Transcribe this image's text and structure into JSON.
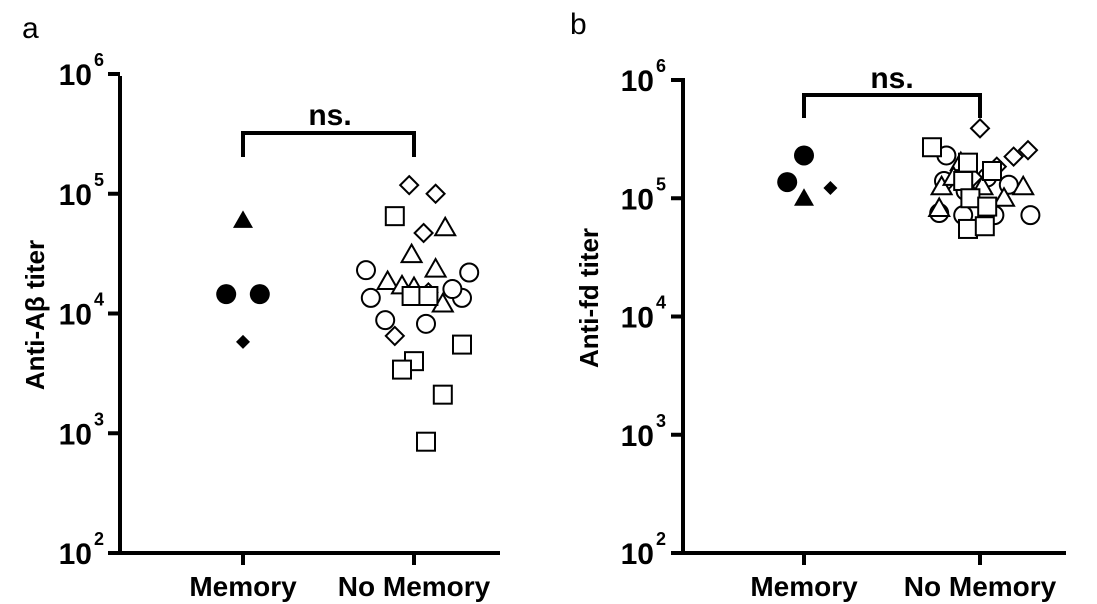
{
  "panels": [
    {
      "letter": "a",
      "ylabel": "Anti-Aβ titer",
      "significance": "ns.",
      "y_ticks": [
        {
          "base": "10",
          "exp": "2",
          "value": 100
        },
        {
          "base": "10",
          "exp": "3",
          "value": 1000
        },
        {
          "base": "10",
          "exp": "4",
          "value": 10000
        },
        {
          "base": "10",
          "exp": "5",
          "value": 100000
        },
        {
          "base": "10",
          "exp": "6",
          "value": 1000000
        }
      ]
    },
    {
      "letter": "b",
      "ylabel": "Anti-fd titer",
      "significance": "ns.",
      "y_ticks": [
        {
          "base": "10",
          "exp": "2",
          "value": 100
        },
        {
          "base": "10",
          "exp": "3",
          "value": 1000
        },
        {
          "base": "10",
          "exp": "4",
          "value": 10000
        },
        {
          "base": "10",
          "exp": "5",
          "value": 100000
        },
        {
          "base": "10",
          "exp": "6",
          "value": 1000000
        }
      ]
    }
  ],
  "chart_data": [
    {
      "type": "scatter",
      "ylabel": "Anti-Aβ titer",
      "yscale": "log",
      "ylim": [
        100,
        1000000
      ],
      "categories": [
        "Memory",
        "No Memory"
      ],
      "annotations": [
        "ns."
      ],
      "grid": false,
      "points": [
        {
          "cat": 0,
          "dx": -0.07,
          "y": 14500,
          "marker": "circle",
          "filled": true
        },
        {
          "cat": 0,
          "dx": 0.07,
          "y": 14500,
          "marker": "circle",
          "filled": true
        },
        {
          "cat": 0,
          "dx": 0.0,
          "y": 60000,
          "marker": "triangle",
          "filled": true
        },
        {
          "cat": 0,
          "dx": 0.0,
          "y": 5800,
          "marker": "diamond",
          "filled": true
        },
        {
          "cat": 1,
          "dx": -0.2,
          "y": 23000,
          "marker": "circle",
          "filled": false
        },
        {
          "cat": 1,
          "dx": -0.18,
          "y": 13500,
          "marker": "circle",
          "filled": false
        },
        {
          "cat": 1,
          "dx": -0.12,
          "y": 8800,
          "marker": "circle",
          "filled": false
        },
        {
          "cat": 1,
          "dx": 0.05,
          "y": 8200,
          "marker": "circle",
          "filled": false
        },
        {
          "cat": 1,
          "dx": 0.2,
          "y": 13500,
          "marker": "circle",
          "filled": false
        },
        {
          "cat": 1,
          "dx": 0.23,
          "y": 22000,
          "marker": "circle",
          "filled": false
        },
        {
          "cat": 1,
          "dx": 0.16,
          "y": 16000,
          "marker": "circle",
          "filled": false
        },
        {
          "cat": 1,
          "dx": -0.11,
          "y": 18500,
          "marker": "triangle",
          "filled": false
        },
        {
          "cat": 1,
          "dx": -0.05,
          "y": 17000,
          "marker": "triangle",
          "filled": false
        },
        {
          "cat": 1,
          "dx": 0.0,
          "y": 16500,
          "marker": "triangle",
          "filled": false
        },
        {
          "cat": 1,
          "dx": -0.01,
          "y": 31000,
          "marker": "triangle",
          "filled": false
        },
        {
          "cat": 1,
          "dx": 0.09,
          "y": 23500,
          "marker": "triangle",
          "filled": false
        },
        {
          "cat": 1,
          "dx": 0.13,
          "y": 52000,
          "marker": "triangle",
          "filled": false
        },
        {
          "cat": 1,
          "dx": 0.12,
          "y": 12000,
          "marker": "triangle",
          "filled": false
        },
        {
          "cat": 1,
          "dx": -0.02,
          "y": 118000,
          "marker": "diamond",
          "filled": false
        },
        {
          "cat": 1,
          "dx": 0.09,
          "y": 100000,
          "marker": "diamond",
          "filled": false
        },
        {
          "cat": 1,
          "dx": 0.04,
          "y": 47000,
          "marker": "diamond",
          "filled": false
        },
        {
          "cat": 1,
          "dx": -0.08,
          "y": 6500,
          "marker": "diamond",
          "filled": false
        },
        {
          "cat": 1,
          "dx": 0.06,
          "y": 15000,
          "marker": "diamond",
          "filled": false
        },
        {
          "cat": 1,
          "dx": -0.08,
          "y": 65000,
          "marker": "square",
          "filled": false
        },
        {
          "cat": 1,
          "dx": -0.01,
          "y": 14000,
          "marker": "square",
          "filled": false
        },
        {
          "cat": 1,
          "dx": 0.06,
          "y": 14000,
          "marker": "square",
          "filled": false
        },
        {
          "cat": 1,
          "dx": 0.0,
          "y": 4000,
          "marker": "square",
          "filled": false
        },
        {
          "cat": 1,
          "dx": -0.05,
          "y": 3400,
          "marker": "square",
          "filled": false
        },
        {
          "cat": 1,
          "dx": 0.2,
          "y": 5500,
          "marker": "square",
          "filled": false
        },
        {
          "cat": 1,
          "dx": 0.12,
          "y": 2100,
          "marker": "square",
          "filled": false
        },
        {
          "cat": 1,
          "dx": 0.05,
          "y": 850,
          "marker": "square",
          "filled": false
        }
      ]
    },
    {
      "type": "scatter",
      "ylabel": "Anti-fd titer",
      "yscale": "log",
      "ylim": [
        100,
        1000000
      ],
      "categories": [
        "Memory",
        "No Memory"
      ],
      "annotations": [
        "ns."
      ],
      "grid": false,
      "points": [
        {
          "cat": 0,
          "dx": -0.07,
          "y": 137000,
          "marker": "circle",
          "filled": true
        },
        {
          "cat": 0,
          "dx": 0.0,
          "y": 230000,
          "marker": "circle",
          "filled": true
        },
        {
          "cat": 0,
          "dx": 0.0,
          "y": 100000,
          "marker": "triangle",
          "filled": true
        },
        {
          "cat": 0,
          "dx": 0.11,
          "y": 122000,
          "marker": "diamond",
          "filled": true
        },
        {
          "cat": 1,
          "dx": -0.14,
          "y": 230000,
          "marker": "circle",
          "filled": false
        },
        {
          "cat": 1,
          "dx": -0.15,
          "y": 140000,
          "marker": "circle",
          "filled": false
        },
        {
          "cat": 1,
          "dx": -0.17,
          "y": 75000,
          "marker": "circle",
          "filled": false
        },
        {
          "cat": 1,
          "dx": -0.07,
          "y": 72000,
          "marker": "circle",
          "filled": false
        },
        {
          "cat": 1,
          "dx": 0.06,
          "y": 72000,
          "marker": "circle",
          "filled": false
        },
        {
          "cat": 1,
          "dx": 0.21,
          "y": 72000,
          "marker": "circle",
          "filled": false
        },
        {
          "cat": 1,
          "dx": -0.06,
          "y": 115000,
          "marker": "circle",
          "filled": false
        },
        {
          "cat": 1,
          "dx": 0.12,
          "y": 130000,
          "marker": "circle",
          "filled": false
        },
        {
          "cat": 1,
          "dx": 0.03,
          "y": 150000,
          "marker": "circle",
          "filled": false
        },
        {
          "cat": 1,
          "dx": -0.16,
          "y": 125000,
          "marker": "triangle",
          "filled": false
        },
        {
          "cat": 1,
          "dx": -0.08,
          "y": 200000,
          "marker": "triangle",
          "filled": false
        },
        {
          "cat": 1,
          "dx": -0.11,
          "y": 150000,
          "marker": "triangle",
          "filled": false
        },
        {
          "cat": 1,
          "dx": -0.17,
          "y": 82000,
          "marker": "triangle",
          "filled": false
        },
        {
          "cat": 1,
          "dx": 0.01,
          "y": 125000,
          "marker": "triangle",
          "filled": false
        },
        {
          "cat": 1,
          "dx": 0.1,
          "y": 100000,
          "marker": "triangle",
          "filled": false
        },
        {
          "cat": 1,
          "dx": 0.18,
          "y": 125000,
          "marker": "triangle",
          "filled": false
        },
        {
          "cat": 1,
          "dx": 0.0,
          "y": 390000,
          "marker": "diamond",
          "filled": false
        },
        {
          "cat": 1,
          "dx": 0.14,
          "y": 225000,
          "marker": "diamond",
          "filled": false
        },
        {
          "cat": 1,
          "dx": 0.2,
          "y": 255000,
          "marker": "diamond",
          "filled": false
        },
        {
          "cat": 1,
          "dx": 0.07,
          "y": 185000,
          "marker": "diamond",
          "filled": false
        },
        {
          "cat": 1,
          "dx": -0.03,
          "y": 150000,
          "marker": "diamond",
          "filled": false
        },
        {
          "cat": 1,
          "dx": -0.2,
          "y": 270000,
          "marker": "square",
          "filled": false
        },
        {
          "cat": 1,
          "dx": -0.05,
          "y": 200000,
          "marker": "square",
          "filled": false
        },
        {
          "cat": 1,
          "dx": 0.05,
          "y": 170000,
          "marker": "square",
          "filled": false
        },
        {
          "cat": 1,
          "dx": -0.07,
          "y": 140000,
          "marker": "square",
          "filled": false
        },
        {
          "cat": 1,
          "dx": -0.04,
          "y": 100000,
          "marker": "square",
          "filled": false
        },
        {
          "cat": 1,
          "dx": 0.03,
          "y": 85000,
          "marker": "square",
          "filled": false
        },
        {
          "cat": 1,
          "dx": -0.05,
          "y": 55000,
          "marker": "square",
          "filled": false
        },
        {
          "cat": 1,
          "dx": 0.02,
          "y": 58000,
          "marker": "square",
          "filled": false
        }
      ]
    }
  ]
}
